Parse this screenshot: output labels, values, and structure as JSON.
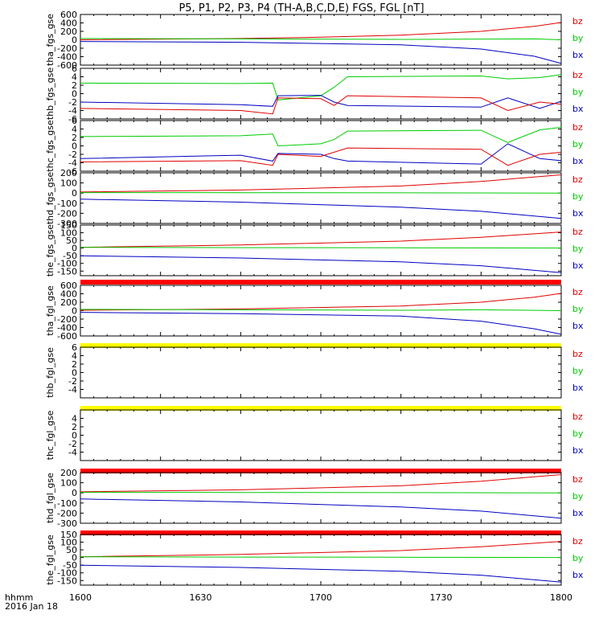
{
  "chart_data": {
    "type": "line",
    "title": "P5, P1, P2, P3, P4 (TH-A,B,C,D,E) FGS, FGL [nT]",
    "x_tick_labels": [
      "1600",
      "1630",
      "1700",
      "1730",
      "1800"
    ],
    "x_axis_label": "hhmm",
    "date_label": "2016 Jan 18",
    "components": [
      "bz",
      "by",
      "bx"
    ],
    "component_colors": {
      "bz": "#e00000",
      "by": "#00cc00",
      "bx": "#0000c0"
    },
    "bar_colors": {
      "red": "#ff0000",
      "yellow": "#ffff00"
    },
    "panels": [
      {
        "ylabel": "tha_fgs_gse",
        "ylim": [
          -600,
          600
        ],
        "y_tick_labels": [
          "600",
          "400",
          "200",
          "0",
          "-200",
          "-400",
          "-600"
        ],
        "has_data": true,
        "series": [
          {
            "name": "bz",
            "x": [
              0,
              60,
              90,
              120,
              150,
              170,
              180
            ],
            "y": [
              0,
              30,
              60,
              110,
              200,
              320,
              410
            ]
          },
          {
            "name": "by",
            "x": [
              0,
              60,
              120,
              170,
              180
            ],
            "y": [
              30,
              20,
              10,
              20,
              0
            ]
          },
          {
            "name": "bx",
            "x": [
              0,
              60,
              120,
              150,
              170,
              180
            ],
            "y": [
              -40,
              -60,
              -120,
              -220,
              -390,
              -560
            ]
          }
        ]
      },
      {
        "ylabel": "thb_fgs_gse",
        "ylim": [
          -6,
          6
        ],
        "y_tick_labels": [
          "6",
          "4",
          "2",
          "0",
          "-2",
          "-4",
          "-6"
        ],
        "has_data": true,
        "series": [
          {
            "name": "by",
            "x": [
              0,
              60,
              72,
              74,
              90,
              95,
              100,
              150,
              160,
              172,
              180
            ],
            "y": [
              2.5,
              2.4,
              2.5,
              -1.5,
              -0.5,
              1.5,
              4.0,
              4.2,
              3.5,
              3.8,
              4.5
            ]
          },
          {
            "name": "bx",
            "x": [
              0,
              60,
              72,
              74,
              90,
              95,
              100,
              150,
              160,
              172,
              180
            ],
            "y": [
              -2.0,
              -2.6,
              -3.0,
              -0.5,
              -0.4,
              -2.0,
              -2.8,
              -3.2,
              -1.0,
              -3.5,
              -1.8
            ]
          },
          {
            "name": "bz",
            "x": [
              0,
              60,
              72,
              74,
              90,
              95,
              100,
              150,
              160,
              172,
              180
            ],
            "y": [
              -3.5,
              -4.0,
              -4.8,
              -1.0,
              -1.2,
              -2.8,
              -0.5,
              -1.0,
              -4.0,
              -2.0,
              -2.5
            ]
          }
        ]
      },
      {
        "ylabel": "thc_fgs_gse",
        "ylim": [
          -6,
          6
        ],
        "y_tick_labels": [
          "6",
          "4",
          "2",
          "0",
          "-2",
          "-4",
          "-6"
        ],
        "has_data": true,
        "series": [
          {
            "name": "by",
            "x": [
              0,
              60,
              72,
              74,
              90,
              95,
              100,
              150,
              160,
              172,
              180
            ],
            "y": [
              2.2,
              2.4,
              2.8,
              0.0,
              0.5,
              1.5,
              3.5,
              3.7,
              0.8,
              3.8,
              4.4
            ]
          },
          {
            "name": "bx",
            "x": [
              0,
              60,
              72,
              74,
              90,
              95,
              100,
              150,
              160,
              172,
              180
            ],
            "y": [
              -3.0,
              -2.2,
              -3.6,
              -1.8,
              -2.0,
              -3.0,
              -3.6,
              -4.3,
              0.5,
              -3.0,
              -3.5
            ]
          },
          {
            "name": "bz",
            "x": [
              0,
              60,
              72,
              74,
              90,
              95,
              100,
              150,
              160,
              172,
              180
            ],
            "y": [
              -3.8,
              -3.5,
              -4.6,
              -2.0,
              -2.5,
              -1.5,
              -0.5,
              -0.8,
              -4.6,
              -2.0,
              -1.5
            ]
          }
        ]
      },
      {
        "ylabel": "thd_fgs_gse",
        "ylim": [
          -300,
          200
        ],
        "y_tick_labels": [
          "200",
          "100",
          "0",
          "-100",
          "-200",
          "-300"
        ],
        "has_data": true,
        "series": [
          {
            "name": "bz",
            "x": [
              0,
              60,
              120,
              150,
              180
            ],
            "y": [
              10,
              30,
              70,
              115,
              180
            ]
          },
          {
            "name": "by",
            "x": [
              0,
              60,
              120,
              180
            ],
            "y": [
              5,
              4,
              2,
              0
            ]
          },
          {
            "name": "bx",
            "x": [
              0,
              60,
              120,
              150,
              180
            ],
            "y": [
              -60,
              -90,
              -140,
              -180,
              -250
            ]
          }
        ]
      },
      {
        "ylabel": "the_fgs_gse",
        "ylim": [
          -180,
          150
        ],
        "y_tick_labels": [
          "150",
          "100",
          "50",
          "0",
          "-50",
          "-100",
          "-150"
        ],
        "has_data": true,
        "series": [
          {
            "name": "bz",
            "x": [
              0,
              60,
              120,
              150,
              180
            ],
            "y": [
              5,
              20,
              45,
              70,
              105
            ]
          },
          {
            "name": "by",
            "x": [
              0,
              60,
              120,
              180
            ],
            "y": [
              5,
              3,
              2,
              0
            ]
          },
          {
            "name": "bx",
            "x": [
              0,
              60,
              120,
              150,
              180
            ],
            "y": [
              -50,
              -65,
              -90,
              -115,
              -160
            ]
          }
        ]
      },
      {
        "ylabel": "tha_fgl_gse",
        "ylim": [
          -600,
          600
        ],
        "y_tick_labels": [
          "600",
          "400",
          "200",
          "0",
          "-200",
          "-400",
          "-600"
        ],
        "has_data": true,
        "series": [
          {
            "name": "bz",
            "x": [
              0,
              60,
              120,
              150,
              170,
              180
            ],
            "y": [
              10,
              40,
              110,
              200,
              320,
              410
            ]
          },
          {
            "name": "by",
            "x": [
              0,
              60,
              120,
              150,
              180
            ],
            "y": [
              30,
              20,
              10,
              20,
              0
            ]
          },
          {
            "name": "bx",
            "x": [
              0,
              60,
              120,
              150,
              170,
              180
            ],
            "y": [
              -40,
              -70,
              -130,
              -250,
              -430,
              -560
            ]
          }
        ]
      },
      {
        "ylabel": "thb_fgl_gse",
        "ylim": [
          -6,
          6
        ],
        "y_tick_labels": [
          "6",
          "4",
          "2",
          "0",
          "-2",
          "-4"
        ],
        "has_data": false,
        "series": []
      },
      {
        "ylabel": "thc_fgl_gse",
        "ylim": [
          -6,
          6
        ],
        "y_tick_labels": [
          "4",
          "2",
          "0",
          "-2",
          "-4"
        ],
        "has_data": false,
        "series": []
      },
      {
        "ylabel": "thd_fgl_gse",
        "ylim": [
          -300,
          200
        ],
        "y_tick_labels": [
          "200",
          "100",
          "0",
          "-100",
          "-200",
          "-300"
        ],
        "has_data": true,
        "series": [
          {
            "name": "bz",
            "x": [
              0,
              60,
              120,
              150,
              180
            ],
            "y": [
              10,
              30,
              70,
              115,
              180
            ]
          },
          {
            "name": "by",
            "x": [
              0,
              60,
              120,
              180
            ],
            "y": [
              5,
              4,
              2,
              0
            ]
          },
          {
            "name": "bx",
            "x": [
              0,
              60,
              120,
              150,
              180
            ],
            "y": [
              -60,
              -90,
              -140,
              -180,
              -250
            ]
          }
        ]
      },
      {
        "ylabel": "the_fgl_gse",
        "ylim": [
          -180,
          150
        ],
        "y_tick_labels": [
          "150",
          "100",
          "50",
          "0",
          "-50",
          "-100",
          "-150"
        ],
        "has_data": true,
        "series": [
          {
            "name": "bz",
            "x": [
              0,
              60,
              120,
              150,
              180
            ],
            "y": [
              5,
              20,
              45,
              70,
              105
            ]
          },
          {
            "name": "by",
            "x": [
              0,
              60,
              120,
              180
            ],
            "y": [
              5,
              3,
              2,
              0
            ]
          },
          {
            "name": "bx",
            "x": [
              0,
              60,
              120,
              150,
              180
            ],
            "y": [
              -50,
              -65,
              -90,
              -115,
              -160
            ]
          }
        ]
      }
    ],
    "status_bars": [
      "red",
      "yellow",
      "yellow",
      "red",
      "red"
    ]
  }
}
